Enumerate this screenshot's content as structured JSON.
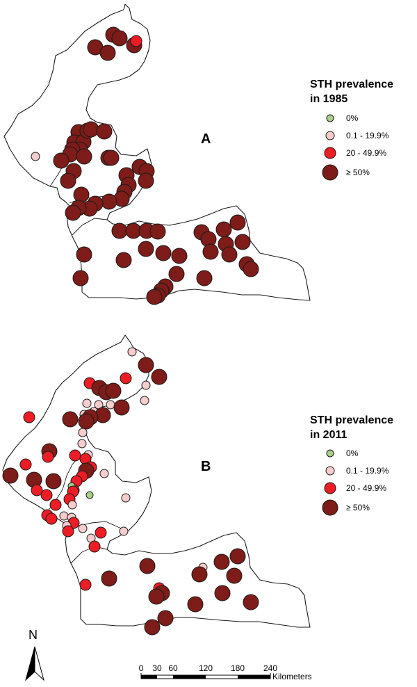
{
  "colors": {
    "cat0": "#a9cf8a",
    "cat1": "#f7cccc",
    "cat2": "#ee1c24",
    "cat3": "#7d1c18",
    "outline": "#1a1a1a"
  },
  "categories": [
    {
      "key": "cat0",
      "label": "0%"
    },
    {
      "key": "cat1",
      "label": "0.1 - 19.9%"
    },
    {
      "key": "cat2",
      "label": "20 - 49.9%"
    },
    {
      "key": "cat3",
      "label": "≥ 50%"
    }
  ],
  "panelA": {
    "letter": "A",
    "legend_title_1": "STH prevalence",
    "legend_title_2": "in 1985"
  },
  "panelB": {
    "letter": "B",
    "legend_title_1": "STH prevalence",
    "legend_title_2": "in 2011"
  },
  "north_label": "N",
  "scale": {
    "ticks": [
      "0",
      "30",
      "60",
      "120",
      "180",
      "240"
    ],
    "unit": "Kilometers"
  }
}
